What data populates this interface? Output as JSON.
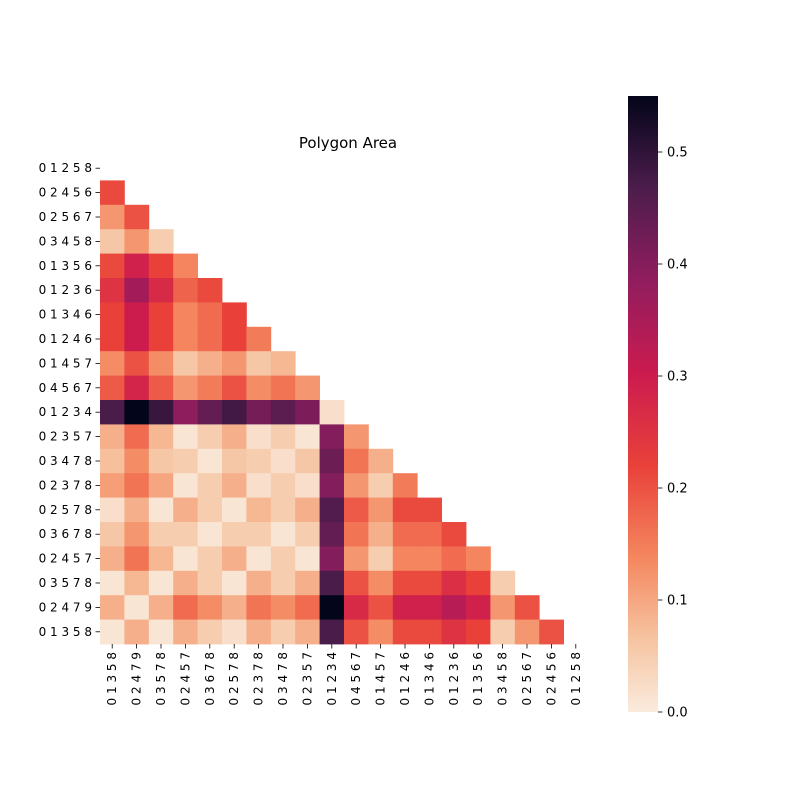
{
  "chart_data": {
    "type": "heatmap",
    "title": "Polygon Area",
    "row_labels": [
      "0 1 2 5 8",
      "0 2 4 5 6",
      "0 2 5 6 7",
      "0 3 4 5 8",
      "0 1 3 5 6",
      "0 1 2 3 6",
      "0 1 3 4 6",
      "0 1 2 4 6",
      "0 1 4 5 7",
      "0 4 5 6 7",
      "0 1 2 3 4",
      "0 2 3 5 7",
      "0 3 4 7 8",
      "0 2 3 7 8",
      "0 2 5 7 8",
      "0 3 6 7 8",
      "0 2 4 5 7",
      "0 3 5 7 8",
      "0 2 4 7 9",
      "0 1 3 5 8"
    ],
    "col_labels": [
      "0 1 3 5 8",
      "0 2 4 7 9",
      "0 3 5 7 8",
      "0 2 4 5 7",
      "0 3 6 7 8",
      "0 2 5 7 8",
      "0 2 3 7 8",
      "0 3 4 7 8",
      "0 2 3 5 7",
      "0 1 2 3 4",
      "0 4 5 6 7",
      "0 1 4 5 7",
      "0 1 2 4 6",
      "0 1 3 4 6",
      "0 1 2 3 6",
      "0 1 3 5 6",
      "0 3 4 5 8",
      "0 2 5 6 7",
      "0 2 4 5 6",
      "0 1 2 5 8"
    ],
    "matrix": [
      [],
      [
        0.21
      ],
      [
        0.12,
        0.2
      ],
      [
        0.06,
        0.12,
        0.05
      ],
      [
        0.21,
        0.29,
        0.22,
        0.14
      ],
      [
        0.25,
        0.36,
        0.27,
        0.18,
        0.21
      ],
      [
        0.22,
        0.3,
        0.22,
        0.14,
        0.17,
        0.22
      ],
      [
        0.22,
        0.3,
        0.22,
        0.14,
        0.17,
        0.22,
        0.15
      ],
      [
        0.13,
        0.2,
        0.13,
        0.06,
        0.09,
        0.12,
        0.06,
        0.08
      ],
      [
        0.19,
        0.28,
        0.19,
        0.12,
        0.15,
        0.2,
        0.13,
        0.16,
        0.12
      ],
      [
        0.47,
        0.55,
        0.49,
        0.39,
        0.44,
        0.48,
        0.42,
        0.45,
        0.41,
        0.02
      ],
      [
        0.09,
        0.17,
        0.08,
        0.01,
        0.05,
        0.09,
        0.02,
        0.05,
        0.01,
        0.4,
        0.12
      ],
      [
        0.07,
        0.13,
        0.06,
        0.05,
        0.01,
        0.06,
        0.05,
        0.02,
        0.06,
        0.43,
        0.16,
        0.09
      ],
      [
        0.11,
        0.16,
        0.1,
        0.01,
        0.05,
        0.09,
        0.02,
        0.05,
        0.02,
        0.4,
        0.12,
        0.05,
        0.15
      ],
      [
        0.02,
        0.09,
        0.01,
        0.09,
        0.05,
        0.01,
        0.08,
        0.05,
        0.09,
        0.46,
        0.19,
        0.12,
        0.21,
        0.21
      ],
      [
        0.06,
        0.12,
        0.05,
        0.05,
        0.01,
        0.05,
        0.05,
        0.01,
        0.05,
        0.44,
        0.16,
        0.09,
        0.17,
        0.17,
        0.21
      ],
      [
        0.09,
        0.16,
        0.08,
        0.01,
        0.05,
        0.09,
        0.01,
        0.05,
        0.01,
        0.4,
        0.12,
        0.05,
        0.14,
        0.14,
        0.17,
        0.14
      ],
      [
        0.01,
        0.08,
        0.01,
        0.09,
        0.05,
        0.01,
        0.09,
        0.05,
        0.09,
        0.47,
        0.2,
        0.13,
        0.21,
        0.21,
        0.26,
        0.22,
        0.05
      ],
      [
        0.09,
        0.01,
        0.09,
        0.17,
        0.13,
        0.09,
        0.16,
        0.13,
        0.17,
        0.55,
        0.27,
        0.2,
        0.29,
        0.29,
        0.33,
        0.29,
        0.12,
        0.2
      ],
      [
        0.01,
        0.09,
        0.01,
        0.09,
        0.05,
        0.02,
        0.09,
        0.05,
        0.09,
        0.47,
        0.2,
        0.13,
        0.21,
        0.21,
        0.25,
        0.22,
        0.05,
        0.12,
        0.2
      ]
    ],
    "colorbar": {
      "vmin": 0.0,
      "vmax": 0.55,
      "ticks": [
        "0.0",
        "0.1",
        "0.2",
        "0.3",
        "0.4",
        "0.5"
      ],
      "tick_values": [
        0.0,
        0.1,
        0.2,
        0.3,
        0.4,
        0.5
      ]
    },
    "colormap": "rocket_r",
    "mask": "upper-triangle",
    "xlabel": "",
    "ylabel": ""
  }
}
